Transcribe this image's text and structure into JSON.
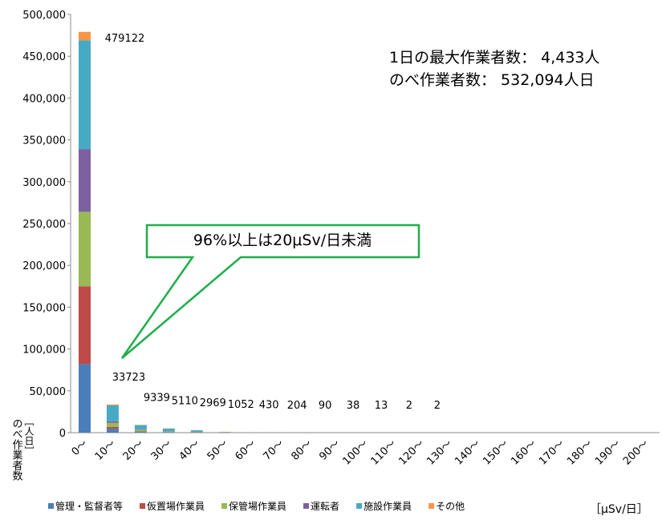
{
  "chart_data": {
    "type": "stacked_bar",
    "categories": [
      "0～",
      "10～",
      "20～",
      "30～",
      "40～",
      "50～",
      "60～",
      "70～",
      "80～",
      "90～",
      "100～",
      "110～",
      "120～",
      "130～",
      "140～",
      "150～",
      "160～",
      "170～",
      "180～",
      "190～",
      "200～"
    ],
    "series": [
      {
        "name": "管理・監督者等",
        "color": "#4a7ebb",
        "values": [
          82000,
          4723,
          1000,
          500,
          300,
          100,
          50,
          20,
          10,
          5,
          2,
          0,
          0,
          0,
          0,
          0,
          0,
          0,
          0,
          0,
          0
        ]
      },
      {
        "name": "仮置場作業員",
        "color": "#be4b48",
        "values": [
          93000,
          2000,
          500,
          200,
          100,
          50,
          20,
          10,
          5,
          2,
          1,
          0,
          0,
          0,
          0,
          0,
          0,
          0,
          0,
          0,
          0
        ]
      },
      {
        "name": "保管場作業員",
        "color": "#98b954",
        "values": [
          89000,
          5000,
          2000,
          800,
          400,
          100,
          50,
          20,
          10,
          5,
          2,
          0,
          0,
          0,
          0,
          0,
          0,
          0,
          0,
          0,
          0
        ]
      },
      {
        "name": "運転者",
        "color": "#7d60a0",
        "values": [
          75000,
          2000,
          500,
          300,
          200,
          50,
          30,
          10,
          5,
          3,
          1,
          0,
          0,
          0,
          0,
          0,
          0,
          0,
          0,
          0,
          0
        ]
      },
      {
        "name": "施設作業員",
        "color": "#46aac5",
        "values": [
          130122,
          19000,
          5000,
          3000,
          1800,
          400,
          200,
          100,
          50,
          20,
          6,
          2,
          2,
          0,
          0,
          0,
          0,
          0,
          0,
          0,
          0
        ]
      },
      {
        "name": "その他",
        "color": "#f79646",
        "values": [
          10000,
          1000,
          339,
          310,
          169,
          352,
          80,
          44,
          10,
          3,
          1,
          0,
          0,
          0,
          0,
          0,
          0,
          0,
          0,
          0,
          0
        ]
      }
    ],
    "totals": [
      479122,
      33723,
      9339,
      5110,
      2969,
      1052,
      430,
      204,
      90,
      38,
      13,
      2,
      2,
      null,
      null,
      null,
      null,
      null,
      null,
      null,
      null
    ],
    "ylim": [
      0,
      500000
    ],
    "yticks": [
      0,
      {
        "value": 50000,
        "label": "50,000"
      },
      {
        "value": 100000,
        "label": "100,000"
      },
      {
        "value": 150000,
        "label": "150,000"
      },
      {
        "value": 200000,
        "label": "200,000"
      },
      {
        "value": 250000,
        "label": "250,000"
      },
      {
        "value": 300000,
        "label": "300,000"
      },
      {
        "value": 350000,
        "label": "350,000"
      },
      {
        "value": 400000,
        "label": "400,000"
      },
      {
        "value": 450000,
        "label": "450,000"
      },
      {
        "value": 500000,
        "label": "500,000"
      }
    ],
    "ylabel": "のべ作業者数",
    "ylabel_unit": "［人日］",
    "xlabel_unit": "［μSv/日］",
    "annotations": [
      "1日の最大作業者数： 4,433人",
      "のべ作業者数： 532,094人日"
    ],
    "callout": "96%以上は20μSv/日未満"
  }
}
